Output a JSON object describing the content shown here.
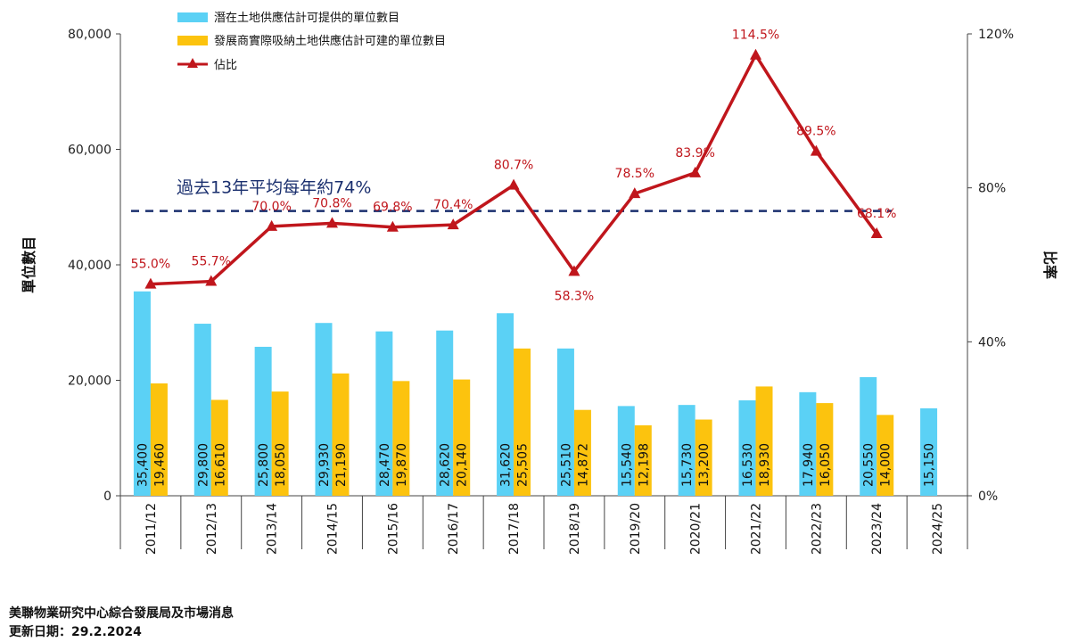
{
  "chart_data": {
    "type": "bar",
    "categories": [
      "2011/12",
      "2012/13",
      "2013/14",
      "2014/15",
      "2015/16",
      "2016/17",
      "2017/18",
      "2018/19",
      "2019/20",
      "2020/21",
      "2021/22",
      "2022/23",
      "2023/24",
      "2024/25"
    ],
    "series": [
      {
        "name": "潛在土地供應估計可提供的單位數目",
        "type": "bar",
        "color": "#5bd1f5",
        "values": [
          35400,
          29800,
          25800,
          29930,
          28470,
          28620,
          31620,
          25510,
          15540,
          15730,
          16530,
          17940,
          20550,
          15150
        ],
        "labels": [
          "35,400",
          "29,800",
          "25,800",
          "29,930",
          "28,470",
          "28,620",
          "31,620",
          "25,510",
          "15,540",
          "15,730",
          "16,530",
          "17,940",
          "20,550",
          "15,150"
        ]
      },
      {
        "name": "發展商實際吸納土地供應估計可建的單位數目",
        "type": "bar",
        "color": "#fcc30e",
        "values": [
          19460,
          16610,
          18050,
          21190,
          19870,
          20140,
          25505,
          14872,
          12198,
          13200,
          18930,
          16050,
          14000,
          null
        ],
        "labels": [
          "19,460",
          "16,610",
          "18,050",
          "21,190",
          "19,870",
          "20,140",
          "25,505",
          "14,872",
          "12,198",
          "13,200",
          "18,930",
          "16,050",
          "14,000",
          ""
        ]
      },
      {
        "name": "佔比",
        "type": "line",
        "color": "#c0161c",
        "axis": "right",
        "values": [
          55.0,
          55.7,
          70.0,
          70.8,
          69.8,
          70.4,
          80.7,
          58.3,
          78.5,
          83.9,
          114.5,
          89.5,
          68.1,
          null
        ],
        "labels": [
          "55.0%",
          "55.7%",
          "70.0%",
          "70.8%",
          "69.8%",
          "70.4%",
          "80.7%",
          "58.3%",
          "78.5%",
          "83.9%",
          "114.5%",
          "89.5%",
          "68.1%",
          ""
        ]
      }
    ],
    "ylabel": "單位數目",
    "y2label": "比率",
    "ylim": [
      0,
      80000
    ],
    "y2lim": [
      0,
      120
    ],
    "yticks": [
      "0",
      "20,000",
      "40,000",
      "60,000",
      "80,000"
    ],
    "y2ticks": [
      "0%",
      "40%",
      "80%",
      "120%"
    ],
    "average_line": {
      "value": 74,
      "label": "過去13年平均每年約74%",
      "color": "#1a2f6e"
    },
    "legend_position": "top-left",
    "grid": false
  },
  "footer": {
    "source": "美聯物業研究中心綜合發展局及市場消息",
    "updated": "更新日期：29.2.2024"
  }
}
